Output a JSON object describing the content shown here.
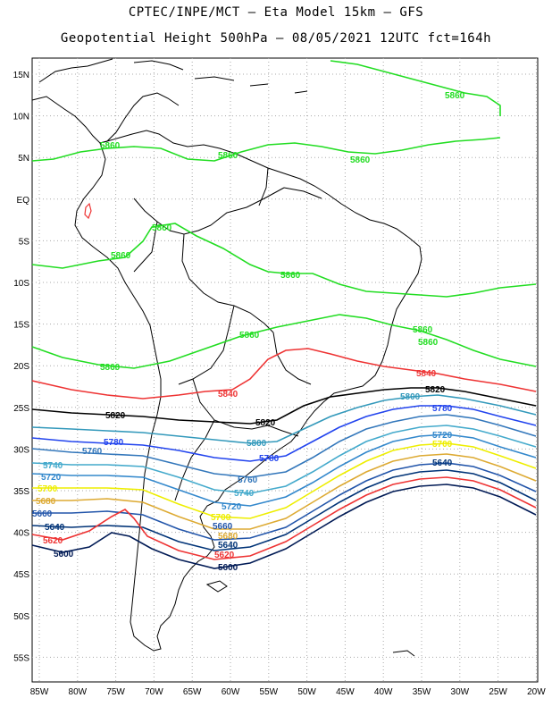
{
  "header": {
    "line1": "CPTEC/INPE/MCT –  Eta Model 15km – GFS",
    "line2": "Geopotential Height 500hPa – 08/05/2021 12UTC fct=164h"
  },
  "axes": {
    "lat_labels": [
      "15N",
      "10N",
      "5N",
      "EQ",
      "5S",
      "10S",
      "15S",
      "20S",
      "25S",
      "30S",
      "35S",
      "40S",
      "45S",
      "50S",
      "55S"
    ],
    "lon_labels": [
      "85W",
      "80W",
      "75W",
      "70W",
      "65W",
      "60W",
      "55W",
      "50W",
      "45W",
      "40W",
      "35W",
      "30W",
      "25W",
      "20W"
    ]
  },
  "colors": {
    "c5860": "#22dd22",
    "c5840": "#ee3333",
    "c5820": "#000000",
    "c5800": "#3399bb",
    "c5780": "#2244ee",
    "c5760": "#3377bb",
    "c5740": "#44aacc",
    "c5720": "#3388cc",
    "c5700": "#eeee00",
    "c5680": "#ddaa33",
    "c5660": "#2255aa",
    "c5640": "#003377",
    "c5620": "#ee3333",
    "c5600": "#001a55",
    "coast": "#000000",
    "grid": "#aaaaaa"
  },
  "contour_labels": {
    "l5860": "5860",
    "l5840": "5840",
    "l5820": "5820",
    "l5800": "5800",
    "l5780": "5780",
    "l5760": "5760",
    "l5740": "5740",
    "l5720": "5720",
    "l5700": "5700",
    "l5680": "5680",
    "l5660": "5660",
    "l5640": "5640",
    "l5620": "5620",
    "l5600": "5600"
  }
}
